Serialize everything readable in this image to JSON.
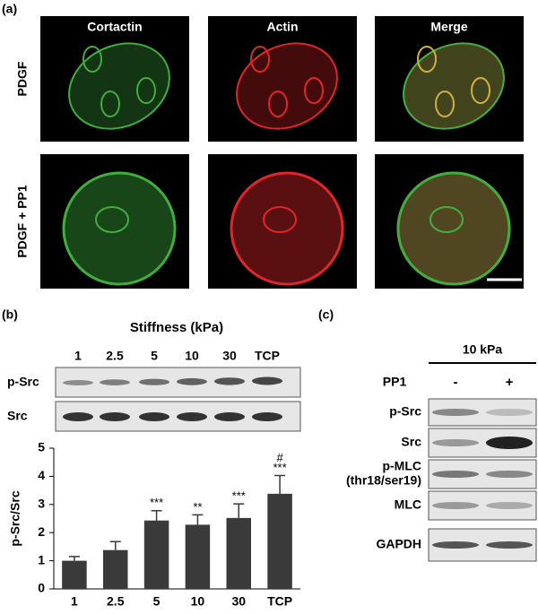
{
  "panel_a": {
    "label": "(a)",
    "columns": [
      "Cortactin",
      "Actin",
      "Merge"
    ],
    "rows": [
      "PDGF",
      "PDGF + PP1"
    ]
  },
  "panel_b": {
    "label": "(b)",
    "stiffness_label": "Stiffness (kPa)",
    "lanes": [
      "1",
      "2.5",
      "5",
      "10",
      "30",
      "TCP"
    ],
    "blots": [
      "p-Src",
      "Src"
    ]
  },
  "chart_data": {
    "type": "bar",
    "ylabel": "p-Src/Src",
    "categories": [
      "1",
      "2.5",
      "5",
      "10",
      "30",
      "TCP"
    ],
    "values": [
      1.0,
      1.38,
      2.43,
      2.28,
      2.52,
      3.38
    ],
    "errors": [
      0.15,
      0.3,
      0.35,
      0.35,
      0.5,
      0.65
    ],
    "significance": [
      [],
      [],
      [
        "***"
      ],
      [
        "**"
      ],
      [
        "***"
      ],
      [
        "#",
        "***"
      ]
    ],
    "color": "#3a3a3a",
    "ylim": [
      0,
      5
    ],
    "yticks": [
      0,
      1,
      2,
      3,
      4,
      5
    ]
  },
  "panel_c": {
    "label": "(c)",
    "condition": "10 kPa",
    "treatment": "PP1",
    "lanes": [
      "-",
      "+"
    ],
    "blots": [
      {
        "label_lines": [
          "p-Src"
        ]
      },
      {
        "label_lines": [
          "Src"
        ]
      },
      {
        "label_lines": [
          "p-MLC",
          "(thr18/ser19)"
        ]
      },
      {
        "label_lines": [
          "MLC"
        ]
      },
      {
        "label_lines": [
          "GAPDH"
        ]
      }
    ]
  }
}
